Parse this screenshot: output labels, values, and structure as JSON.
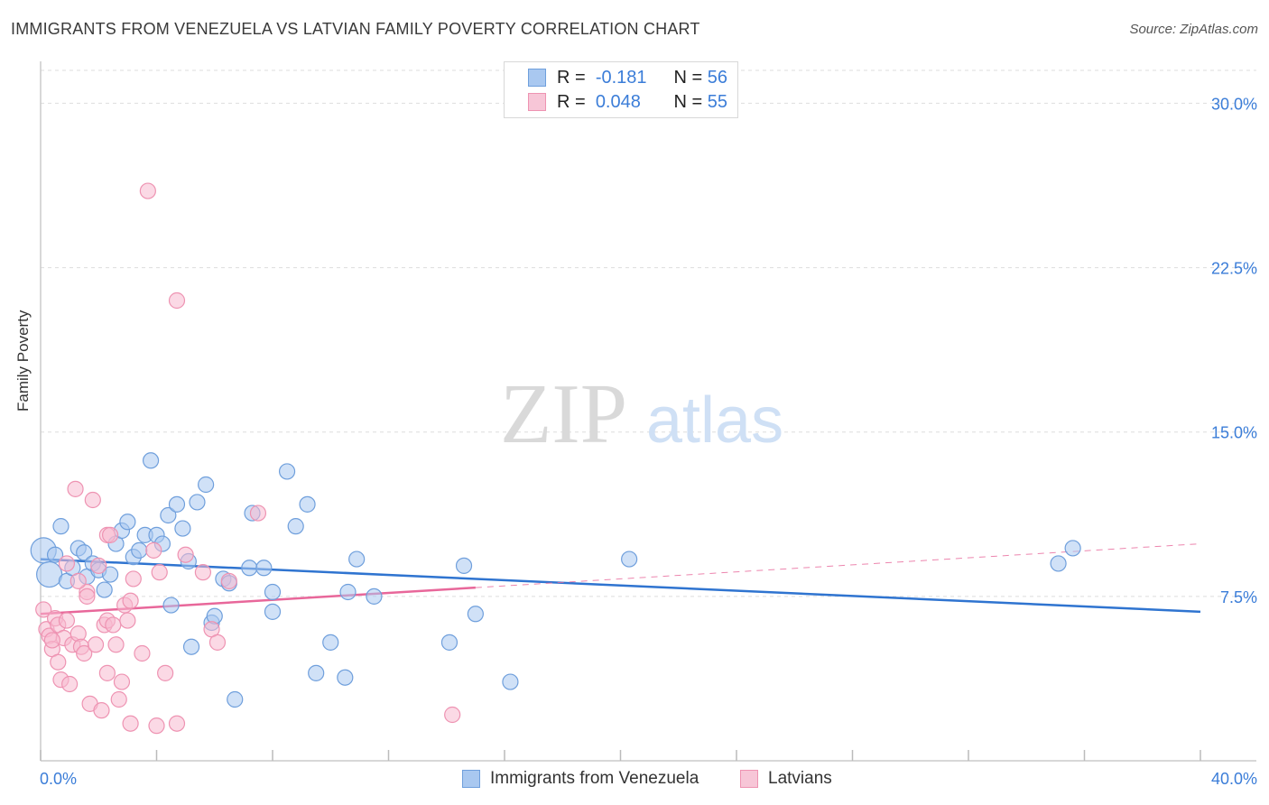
{
  "title": "IMMIGRANTS FROM VENEZUELA VS LATVIAN FAMILY POVERTY CORRELATION CHART",
  "source": "Source: ZipAtlas.com",
  "watermark": {
    "zip": "ZIP",
    "atlas": "atlas"
  },
  "colors": {
    "blue_fill": "#a9c8f0",
    "blue_stroke": "#6f9fdc",
    "blue_line": "#2f74d0",
    "pink_fill": "#f7b9cf",
    "pink_stroke": "#ee93b2",
    "pink_line": "#e8679a",
    "axis_text": "#3b7dd8",
    "grid": "#dddddd"
  },
  "legend": {
    "rows": [
      {
        "r_label": "R =",
        "r_value": "-0.181",
        "n_label": "N =",
        "n_value": "56"
      },
      {
        "r_label": "R =",
        "r_value": "0.048",
        "n_label": "N =",
        "n_value": "55"
      }
    ]
  },
  "bottom_legend": {
    "series1": "Immigrants from Venezuela",
    "series2": "Latvians"
  },
  "chart_data": {
    "type": "scatter",
    "title": "IMMIGRANTS FROM VENEZUELA VS LATVIAN FAMILY POVERTY CORRELATION CHART",
    "xlabel": "",
    "ylabel": "Family Poverty",
    "xlim": [
      0,
      40
    ],
    "ylim": [
      0,
      31.5
    ],
    "x_tick_labels": [
      "0.0%",
      "40.0%"
    ],
    "y_ticks": [
      7.5,
      15.0,
      22.5,
      30.0
    ],
    "y_tick_labels": [
      "7.5%",
      "15.0%",
      "22.5%",
      "30.0%"
    ],
    "grid": true,
    "series": [
      {
        "name": "Immigrants from Venezuela",
        "trend": {
          "x": [
            0,
            40
          ],
          "y": [
            9.2,
            6.8
          ],
          "solid_to": 40
        },
        "points": [
          {
            "x": 0.1,
            "y": 9.6,
            "big": true
          },
          {
            "x": 0.3,
            "y": 8.5,
            "big": true
          },
          {
            "x": 0.5,
            "y": 9.4
          },
          {
            "x": 0.7,
            "y": 10.7
          },
          {
            "x": 0.9,
            "y": 8.2
          },
          {
            "x": 1.1,
            "y": 8.8
          },
          {
            "x": 1.3,
            "y": 9.7
          },
          {
            "x": 1.5,
            "y": 9.5
          },
          {
            "x": 1.6,
            "y": 8.4
          },
          {
            "x": 1.8,
            "y": 9.0
          },
          {
            "x": 2.0,
            "y": 8.7
          },
          {
            "x": 2.2,
            "y": 7.8
          },
          {
            "x": 2.4,
            "y": 8.5
          },
          {
            "x": 2.6,
            "y": 9.9
          },
          {
            "x": 2.8,
            "y": 10.5
          },
          {
            "x": 3.0,
            "y": 10.9
          },
          {
            "x": 3.2,
            "y": 9.3
          },
          {
            "x": 3.4,
            "y": 9.6
          },
          {
            "x": 3.6,
            "y": 10.3
          },
          {
            "x": 3.8,
            "y": 13.7
          },
          {
            "x": 4.0,
            "y": 10.3
          },
          {
            "x": 4.2,
            "y": 9.9
          },
          {
            "x": 4.4,
            "y": 11.2
          },
          {
            "x": 4.5,
            "y": 7.1
          },
          {
            "x": 4.7,
            "y": 11.7
          },
          {
            "x": 4.9,
            "y": 10.6
          },
          {
            "x": 5.1,
            "y": 9.1
          },
          {
            "x": 5.2,
            "y": 5.2
          },
          {
            "x": 5.4,
            "y": 11.8
          },
          {
            "x": 5.7,
            "y": 12.6
          },
          {
            "x": 5.9,
            "y": 6.3
          },
          {
            "x": 6.0,
            "y": 6.6
          },
          {
            "x": 6.3,
            "y": 8.3
          },
          {
            "x": 6.5,
            "y": 8.1
          },
          {
            "x": 6.7,
            "y": 2.8
          },
          {
            "x": 7.2,
            "y": 8.8
          },
          {
            "x": 7.3,
            "y": 11.3
          },
          {
            "x": 7.7,
            "y": 8.8
          },
          {
            "x": 8.0,
            "y": 7.7
          },
          {
            "x": 8.0,
            "y": 6.8
          },
          {
            "x": 8.5,
            "y": 13.2
          },
          {
            "x": 8.8,
            "y": 10.7
          },
          {
            "x": 9.2,
            "y": 11.7
          },
          {
            "x": 9.5,
            "y": 4.0
          },
          {
            "x": 10.0,
            "y": 5.4
          },
          {
            "x": 10.5,
            "y": 3.8
          },
          {
            "x": 10.6,
            "y": 7.7
          },
          {
            "x": 10.9,
            "y": 9.2
          },
          {
            "x": 11.5,
            "y": 7.5
          },
          {
            "x": 14.1,
            "y": 5.4
          },
          {
            "x": 14.6,
            "y": 8.9
          },
          {
            "x": 15.0,
            "y": 6.7
          },
          {
            "x": 16.2,
            "y": 3.6
          },
          {
            "x": 20.3,
            "y": 9.2
          },
          {
            "x": 35.1,
            "y": 9.0
          },
          {
            "x": 35.6,
            "y": 9.7
          }
        ]
      },
      {
        "name": "Latvians",
        "trend": {
          "x": [
            0,
            40
          ],
          "y": [
            6.7,
            9.9
          ],
          "solid_to": 15.0
        },
        "points": [
          {
            "x": 0.1,
            "y": 6.9
          },
          {
            "x": 0.2,
            "y": 6.0
          },
          {
            "x": 0.3,
            "y": 5.7
          },
          {
            "x": 0.4,
            "y": 5.1
          },
          {
            "x": 0.5,
            "y": 6.5
          },
          {
            "x": 0.6,
            "y": 6.2
          },
          {
            "x": 0.6,
            "y": 4.5
          },
          {
            "x": 0.7,
            "y": 3.7
          },
          {
            "x": 0.8,
            "y": 5.6
          },
          {
            "x": 0.9,
            "y": 6.4
          },
          {
            "x": 1.0,
            "y": 3.5
          },
          {
            "x": 1.1,
            "y": 5.3
          },
          {
            "x": 1.2,
            "y": 12.4
          },
          {
            "x": 1.3,
            "y": 5.8
          },
          {
            "x": 1.4,
            "y": 5.2
          },
          {
            "x": 1.5,
            "y": 4.9
          },
          {
            "x": 1.6,
            "y": 7.7
          },
          {
            "x": 1.6,
            "y": 7.5
          },
          {
            "x": 1.7,
            "y": 2.6
          },
          {
            "x": 1.8,
            "y": 11.9
          },
          {
            "x": 1.9,
            "y": 5.3
          },
          {
            "x": 2.0,
            "y": 8.9
          },
          {
            "x": 2.1,
            "y": 2.3
          },
          {
            "x": 2.2,
            "y": 6.2
          },
          {
            "x": 2.3,
            "y": 6.4
          },
          {
            "x": 2.3,
            "y": 4.0
          },
          {
            "x": 2.3,
            "y": 10.3
          },
          {
            "x": 2.5,
            "y": 6.2
          },
          {
            "x": 2.6,
            "y": 5.3
          },
          {
            "x": 2.7,
            "y": 2.8
          },
          {
            "x": 2.8,
            "y": 3.6
          },
          {
            "x": 2.9,
            "y": 7.1
          },
          {
            "x": 3.0,
            "y": 6.4
          },
          {
            "x": 3.1,
            "y": 7.3
          },
          {
            "x": 3.1,
            "y": 1.7
          },
          {
            "x": 3.2,
            "y": 8.3
          },
          {
            "x": 3.5,
            "y": 4.9
          },
          {
            "x": 3.7,
            "y": 26.0
          },
          {
            "x": 3.9,
            "y": 9.6
          },
          {
            "x": 4.0,
            "y": 1.6
          },
          {
            "x": 4.1,
            "y": 8.6
          },
          {
            "x": 4.3,
            "y": 4.0
          },
          {
            "x": 4.7,
            "y": 21.0
          },
          {
            "x": 4.7,
            "y": 1.7
          },
          {
            "x": 5.0,
            "y": 9.4
          },
          {
            "x": 5.6,
            "y": 8.6
          },
          {
            "x": 5.9,
            "y": 6.0
          },
          {
            "x": 6.1,
            "y": 5.4
          },
          {
            "x": 6.5,
            "y": 8.2
          },
          {
            "x": 7.5,
            "y": 11.3
          },
          {
            "x": 14.2,
            "y": 2.1
          },
          {
            "x": 0.9,
            "y": 9.0
          },
          {
            "x": 1.3,
            "y": 8.2
          },
          {
            "x": 0.4,
            "y": 5.5
          },
          {
            "x": 2.4,
            "y": 10.3
          }
        ]
      }
    ]
  }
}
